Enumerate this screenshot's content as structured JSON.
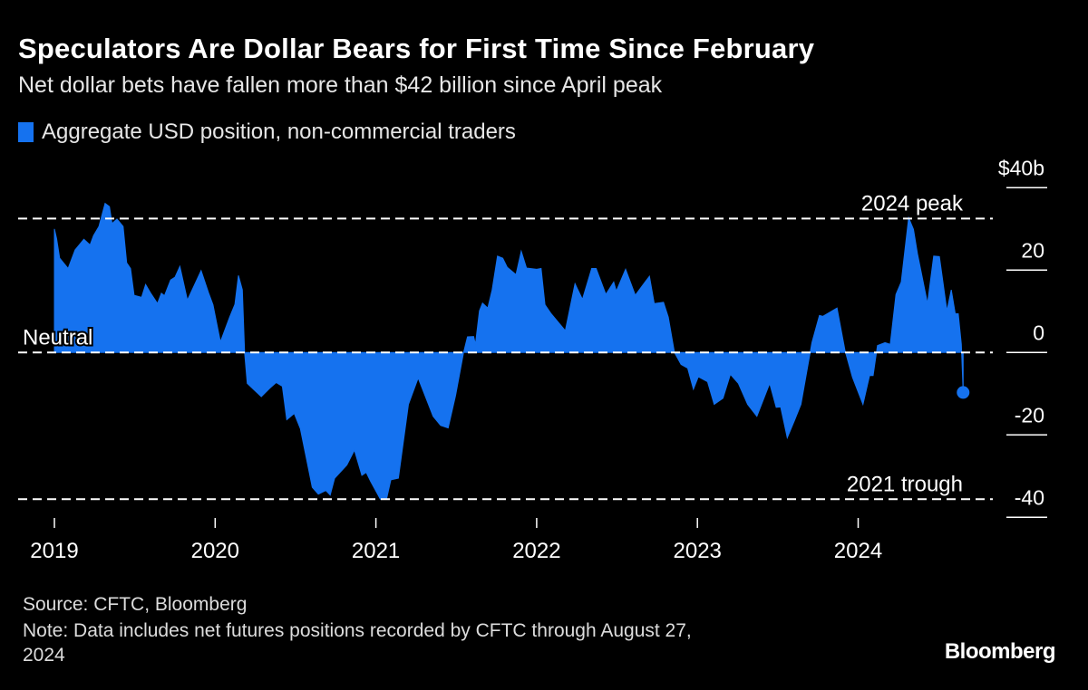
{
  "header": {
    "title": "Speculators Are Dollar Bears for First Time Since February",
    "subtitle": "Net dollar bets have fallen more than $42 billion since April peak"
  },
  "footer": {
    "source": "Source: CFTC, Bloomberg",
    "note_line1": "Note: Data includes net futures positions recorded by CFTC through August 27,",
    "note_line2": "2024",
    "logo": "Bloomberg"
  },
  "colors": {
    "series": "#1572ef",
    "background": "#000000",
    "text": "#ffffff"
  },
  "chart_data": {
    "type": "area",
    "title": "Speculators Are Dollar Bears for First Time Since February",
    "subtitle": "Net dollar bets have fallen more than $42 billion since April peak",
    "legend": {
      "placement": "top-left",
      "entries": [
        "Aggregate USD position, non-commercial traders"
      ]
    },
    "xlabel": "",
    "ylabel": "",
    "ylim": [
      -40,
      40
    ],
    "y_ticks": [
      {
        "value": 40,
        "label": "$40b"
      },
      {
        "value": 20,
        "label": "20"
      },
      {
        "value": 0,
        "label": "0"
      },
      {
        "value": -20,
        "label": "-20"
      },
      {
        "value": -40,
        "label": "-40"
      }
    ],
    "x_ticks": [
      "2019",
      "2020",
      "2021",
      "2022",
      "2023",
      "2024"
    ],
    "grid": false,
    "reference_lines": [
      {
        "label": "2024 peak",
        "value": 32.5
      },
      {
        "label": "Neutral",
        "value": 0
      },
      {
        "label": "2021 trough",
        "value": -35.6
      }
    ],
    "series": [
      {
        "name": "Aggregate USD position, non-commercial traders",
        "points": [
          [
            "2019-01-01",
            30.0
          ],
          [
            "2019-01-06",
            27.7
          ],
          [
            "2019-01-13",
            22.9
          ],
          [
            "2019-02-01",
            20.4
          ],
          [
            "2019-02-17",
            24.9
          ],
          [
            "2019-03-09",
            27.5
          ],
          [
            "2019-03-23",
            26.1
          ],
          [
            "2019-03-31",
            28.4
          ],
          [
            "2019-04-12",
            30.6
          ],
          [
            "2019-04-26",
            36.2
          ],
          [
            "2019-05-06",
            35.4
          ],
          [
            "2019-05-12",
            31.3
          ],
          [
            "2019-05-23",
            32.4
          ],
          [
            "2019-06-06",
            30.6
          ],
          [
            "2019-06-14",
            21.8
          ],
          [
            "2019-06-23",
            20.4
          ],
          [
            "2019-07-01",
            13.9
          ],
          [
            "2019-07-18",
            13.4
          ],
          [
            "2019-07-27",
            16.5
          ],
          [
            "2019-08-07",
            14.5
          ],
          [
            "2019-08-23",
            11.9
          ],
          [
            "2019-09-01",
            14.4
          ],
          [
            "2019-09-08",
            13.8
          ],
          [
            "2019-09-22",
            17.6
          ],
          [
            "2019-10-02",
            18.3
          ],
          [
            "2019-10-13",
            20.9
          ],
          [
            "2019-10-30",
            12.7
          ],
          [
            "2019-11-30",
            19.9
          ],
          [
            "2019-12-17",
            14.5
          ],
          [
            "2019-12-27",
            11.6
          ],
          [
            "2020-01-13",
            2.6
          ],
          [
            "2020-02-03",
            8.6
          ],
          [
            "2020-02-15",
            11.7
          ],
          [
            "2020-02-23",
            18.7
          ],
          [
            "2020-03-03",
            15.2
          ],
          [
            "2020-03-08",
            0.0
          ],
          [
            "2020-03-14",
            -7.5
          ],
          [
            "2020-04-15",
            -10.7
          ],
          [
            "2020-05-05",
            -8.6
          ],
          [
            "2020-05-19",
            -7.3
          ],
          [
            "2020-06-02",
            -8.2
          ],
          [
            "2020-06-12",
            -16.3
          ],
          [
            "2020-06-29",
            -14.8
          ],
          [
            "2020-07-13",
            -18.5
          ],
          [
            "2020-08-09",
            -32.7
          ],
          [
            "2020-08-23",
            -34.4
          ],
          [
            "2020-09-09",
            -33.5
          ],
          [
            "2020-09-19",
            -34.6
          ],
          [
            "2020-09-29",
            -30.5
          ],
          [
            "2020-10-27",
            -27.3
          ],
          [
            "2020-11-13",
            -23.7
          ],
          [
            "2020-11-30",
            -29.8
          ],
          [
            "2020-12-10",
            -29.1
          ],
          [
            "2020-12-20",
            -31.3
          ],
          [
            "2021-01-11",
            -35.6
          ],
          [
            "2021-01-25",
            -35.6
          ],
          [
            "2021-02-04",
            -30.9
          ],
          [
            "2021-02-21",
            -30.5
          ],
          [
            "2021-03-16",
            -12.6
          ],
          [
            "2021-04-07",
            -6.2
          ],
          [
            "2021-05-11",
            -15.5
          ],
          [
            "2021-05-28",
            -17.7
          ],
          [
            "2021-06-14",
            -18.3
          ],
          [
            "2021-07-01",
            -10.4
          ],
          [
            "2021-07-19",
            0.0
          ],
          [
            "2021-07-28",
            3.8
          ],
          [
            "2021-08-11",
            3.9
          ],
          [
            "2021-08-15",
            2.0
          ],
          [
            "2021-08-24",
            10.1
          ],
          [
            "2021-08-31",
            12.0
          ],
          [
            "2021-09-12",
            10.8
          ],
          [
            "2021-09-22",
            15.2
          ],
          [
            "2021-10-04",
            23.4
          ],
          [
            "2021-10-16",
            22.9
          ],
          [
            "2021-10-26",
            20.7
          ],
          [
            "2021-11-15",
            18.9
          ],
          [
            "2021-11-27",
            24.6
          ],
          [
            "2021-12-09",
            20.5
          ],
          [
            "2022-01-01",
            20.2
          ],
          [
            "2022-01-11",
            20.4
          ],
          [
            "2022-01-20",
            11.6
          ],
          [
            "2022-02-03",
            9.4
          ],
          [
            "2022-03-07",
            5.3
          ],
          [
            "2022-03-29",
            16.7
          ],
          [
            "2022-04-15",
            12.9
          ],
          [
            "2022-05-06",
            20.4
          ],
          [
            "2022-05-16",
            20.4
          ],
          [
            "2022-06-07",
            14.1
          ],
          [
            "2022-06-25",
            17.1
          ],
          [
            "2022-07-01",
            14.9
          ],
          [
            "2022-07-22",
            20.2
          ],
          [
            "2022-08-13",
            13.9
          ],
          [
            "2022-09-04",
            17.1
          ],
          [
            "2022-09-14",
            18.5
          ],
          [
            "2022-09-25",
            11.9
          ],
          [
            "2022-10-16",
            12.2
          ],
          [
            "2022-10-27",
            8.6
          ],
          [
            "2022-11-10",
            0.0
          ],
          [
            "2022-11-25",
            -2.9
          ],
          [
            "2022-12-10",
            -3.8
          ],
          [
            "2022-12-23",
            -8.9
          ],
          [
            "2023-01-03",
            -5.9
          ],
          [
            "2023-01-24",
            -7.1
          ],
          [
            "2023-02-08",
            -12.6
          ],
          [
            "2023-02-28",
            -11.1
          ],
          [
            "2023-03-17",
            -5.3
          ],
          [
            "2023-04-04",
            -7.5
          ],
          [
            "2023-04-25",
            -12.6
          ],
          [
            "2023-05-16",
            -15.5
          ],
          [
            "2023-06-14",
            -7.5
          ],
          [
            "2023-06-29",
            -13.3
          ],
          [
            "2023-07-09",
            -13.2
          ],
          [
            "2023-07-24",
            -20.7
          ],
          [
            "2023-08-10",
            -16.3
          ],
          [
            "2023-08-24",
            -12.6
          ],
          [
            "2023-09-18",
            2.4
          ],
          [
            "2023-10-05",
            9.0
          ],
          [
            "2023-10-13",
            8.8
          ],
          [
            "2023-11-14",
            10.8
          ],
          [
            "2023-12-02",
            0.6
          ],
          [
            "2023-12-19",
            -6.0
          ],
          [
            "2024-01-12",
            -12.6
          ],
          [
            "2024-01-27",
            -5.6
          ],
          [
            "2024-02-04",
            -5.6
          ],
          [
            "2024-02-14",
            1.7
          ],
          [
            "2024-03-02",
            2.4
          ],
          [
            "2024-03-14",
            2.0
          ],
          [
            "2024-03-27",
            14.1
          ],
          [
            "2024-04-08",
            17.1
          ],
          [
            "2024-04-25",
            32.7
          ],
          [
            "2024-05-06",
            29.9
          ],
          [
            "2024-05-15",
            24.0
          ],
          [
            "2024-06-07",
            11.9
          ],
          [
            "2024-06-21",
            23.4
          ],
          [
            "2024-07-04",
            23.3
          ],
          [
            "2024-07-21",
            10.1
          ],
          [
            "2024-07-31",
            15.2
          ],
          [
            "2024-08-09",
            9.4
          ],
          [
            "2024-08-16",
            9.4
          ],
          [
            "2024-08-23",
            2.0
          ],
          [
            "2024-08-27",
            -9.7
          ]
        ]
      }
    ]
  }
}
